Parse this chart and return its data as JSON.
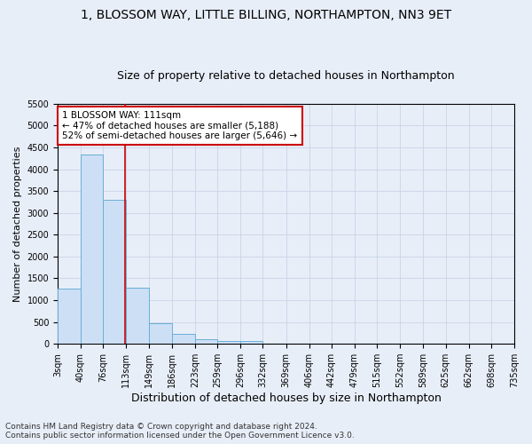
{
  "title1": "1, BLOSSOM WAY, LITTLE BILLING, NORTHAMPTON, NN3 9ET",
  "title2": "Size of property relative to detached houses in Northampton",
  "xlabel": "Distribution of detached houses by size in Northampton",
  "ylabel": "Number of detached properties",
  "bin_edges": [
    3,
    40,
    76,
    113,
    149,
    186,
    223,
    259,
    296,
    332,
    369,
    406,
    442,
    479,
    515,
    552,
    589,
    625,
    662,
    698,
    735
  ],
  "bin_values": [
    1270,
    4340,
    3300,
    1280,
    480,
    220,
    100,
    70,
    60,
    0,
    0,
    0,
    0,
    0,
    0,
    0,
    0,
    0,
    0,
    0
  ],
  "bar_color": "#ccdff5",
  "bar_edge_color": "#6aaed6",
  "grid_color": "#c8d4e8",
  "background_color": "#e8eef8",
  "property_sqm": 111,
  "annotation_title": "1 BLOSSOM WAY: 111sqm",
  "annotation_line1": "← 47% of detached houses are smaller (5,188)",
  "annotation_line2": "52% of semi-detached houses are larger (5,646) →",
  "annotation_box_color": "#ffffff",
  "annotation_border_color": "#cc0000",
  "vline_color": "#cc0000",
  "ylim_max": 5500,
  "yticks": [
    0,
    500,
    1000,
    1500,
    2000,
    2500,
    3000,
    3500,
    4000,
    4500,
    5000,
    5500
  ],
  "footer1": "Contains HM Land Registry data © Crown copyright and database right 2024.",
  "footer2": "Contains public sector information licensed under the Open Government Licence v3.0.",
  "title1_fontsize": 10,
  "title2_fontsize": 9,
  "xlabel_fontsize": 9,
  "ylabel_fontsize": 8,
  "tick_fontsize": 7,
  "annotation_fontsize": 7.5,
  "footer_fontsize": 6.5
}
